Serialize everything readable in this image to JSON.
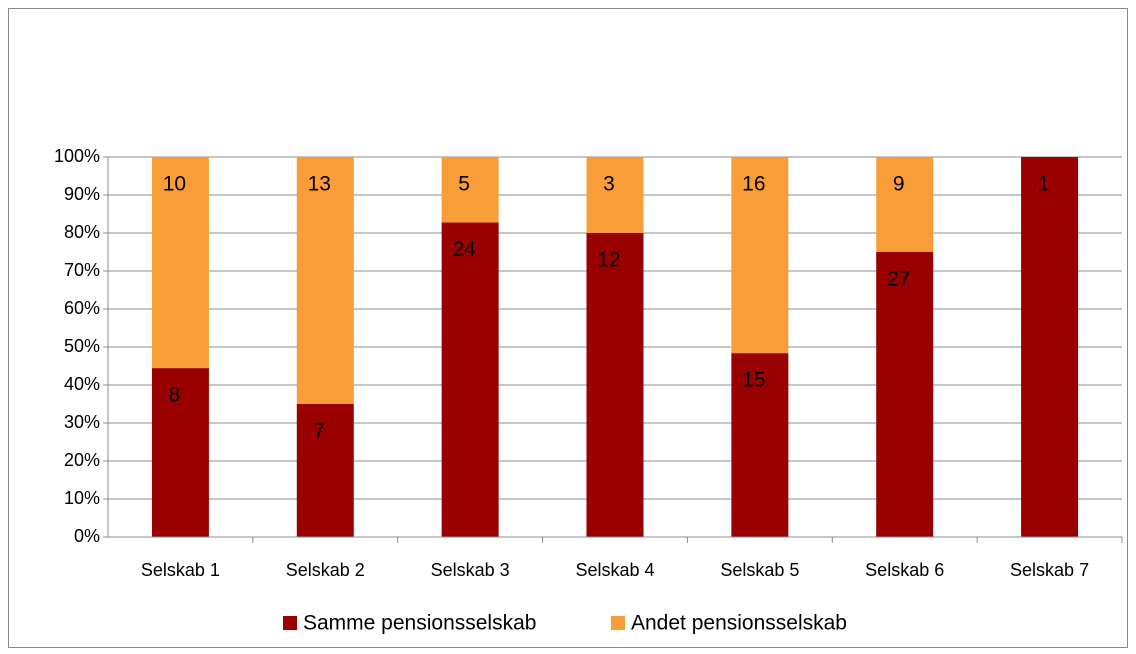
{
  "chart_data": {
    "type": "bar",
    "stacked": "percent",
    "categories": [
      "Selskab 1",
      "Selskab 2",
      "Selskab 3",
      "Selskab 4",
      "Selskab 5",
      "Selskab 6",
      "Selskab 7"
    ],
    "series": [
      {
        "name": "Samme pensionsselskab",
        "color": "#990000",
        "values": [
          8,
          7,
          24,
          12,
          15,
          27,
          1
        ]
      },
      {
        "name": "Andet pensionsselskab",
        "color": "#f99d39",
        "values": [
          10,
          13,
          5,
          3,
          16,
          9,
          0
        ]
      }
    ],
    "ylim": [
      0,
      100
    ],
    "yticks": [
      {
        "value": 0,
        "label": "0%"
      },
      {
        "value": 10,
        "label": "10%"
      },
      {
        "value": 20,
        "label": "20%"
      },
      {
        "value": 30,
        "label": "30%"
      },
      {
        "value": 40,
        "label": "40%"
      },
      {
        "value": 50,
        "label": "50%"
      },
      {
        "value": 60,
        "label": "60%"
      },
      {
        "value": 70,
        "label": "70%"
      },
      {
        "value": 80,
        "label": "80%"
      },
      {
        "value": 90,
        "label": "90%"
      },
      {
        "value": 100,
        "label": "100%"
      }
    ],
    "grid": true,
    "legend": "bottom"
  }
}
